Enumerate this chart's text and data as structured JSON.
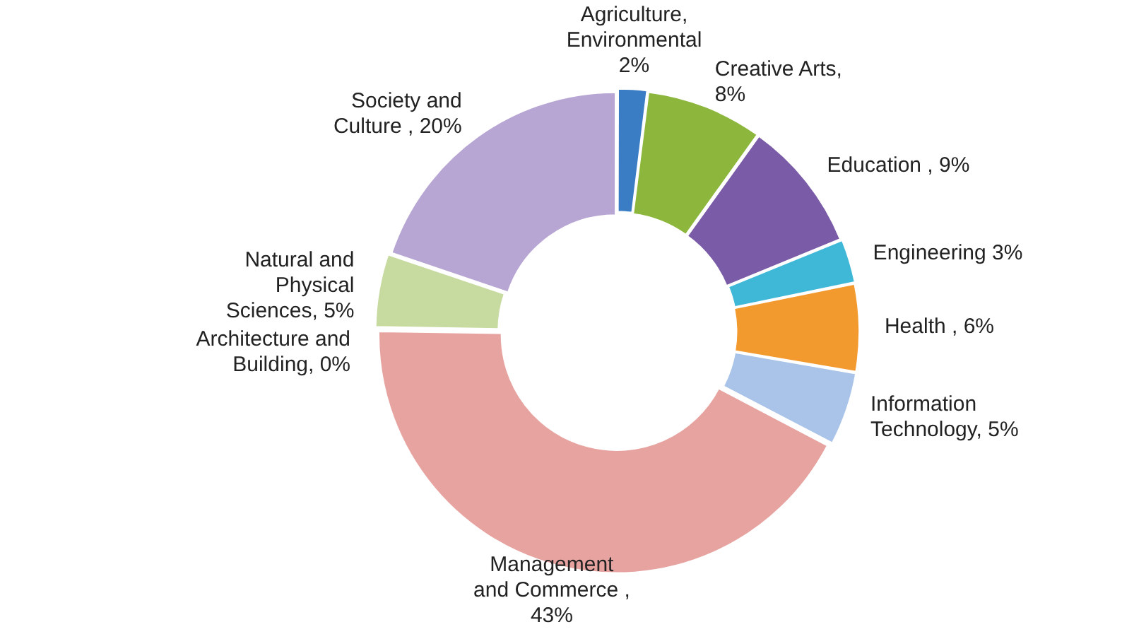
{
  "chart_data": {
    "type": "donut",
    "categories": [
      "Agriculture, Environmental",
      "Creative Arts",
      "Education ",
      "Engineering",
      "Health ",
      "Information Technology",
      "Management and Commerce ",
      "Architecture and Building",
      "Natural and Physical Sciences",
      "Society and Culture "
    ],
    "values": [
      2,
      8,
      9,
      3,
      6,
      5,
      43,
      0,
      5,
      20
    ],
    "value_labels": [
      " 2%",
      ", 8%",
      ", 9%",
      " 3%",
      ", 6%",
      ", 5%",
      ", 43%",
      ", 0%",
      ", 5%",
      ", 20%"
    ],
    "colors": [
      "#3a7dc4",
      "#8db63c",
      "#7a5ba7",
      "#3fb8d8",
      "#f39a2e",
      "#a9c4e8",
      "#e7a3a0",
      "#9fb0c8",
      "#c7dba0",
      "#b7a6d3"
    ],
    "legend": false
  }
}
